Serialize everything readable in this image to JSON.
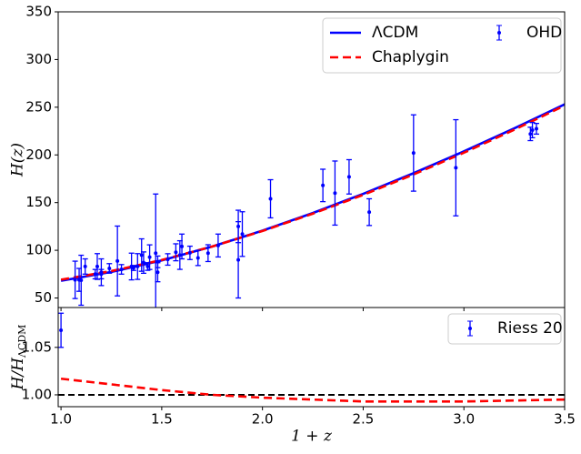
{
  "chart_data": [
    {
      "type": "line",
      "ylabel": "H(z)",
      "xlim": [
        0.986,
        3.5
      ],
      "ylim": [
        40,
        350
      ],
      "yticks": [
        50,
        100,
        150,
        200,
        250,
        300,
        350
      ],
      "legend": "upper right",
      "series": [
        {
          "name": "ΛCDM",
          "color": "#0000ff",
          "style": "solid",
          "x": [
            1.0,
            1.25,
            1.5,
            1.75,
            2.0,
            2.25,
            2.5,
            2.75,
            3.0,
            3.25,
            3.5
          ],
          "values": [
            68,
            77.3,
            89.4,
            103.9,
            120.6,
            139.1,
            159.2,
            180.8,
            203.7,
            227.8,
            253
          ]
        },
        {
          "name": "Chaplygin",
          "color": "#ff0000",
          "style": "dashed",
          "x": [
            1.0,
            1.25,
            1.5,
            1.75,
            2.0,
            2.25,
            2.5,
            2.75,
            3.0,
            3.25,
            3.5
          ],
          "values": [
            69.2,
            78.2,
            89.8,
            103.9,
            120.2,
            138.4,
            158.1,
            179.5,
            202.3,
            226.4,
            251.7
          ]
        },
        {
          "name": "OHD",
          "color": "#0000ff",
          "style": "errorbar",
          "x": [
            1.07,
            1.09,
            1.1,
            1.12,
            1.17,
            1.18,
            1.2,
            1.2,
            1.24,
            1.28,
            1.3,
            1.35,
            1.36,
            1.38,
            1.4,
            1.41,
            1.43,
            1.44,
            1.47,
            1.48,
            1.48,
            1.53,
            1.57,
            1.59,
            1.6,
            1.64,
            1.68,
            1.73,
            1.78,
            1.88,
            1.88,
            1.9,
            2.04,
            2.3,
            2.36,
            2.43,
            2.53,
            2.75,
            2.96,
            3.33,
            3.34,
            3.36
          ],
          "values": [
            69,
            69,
            68.6,
            83,
            75,
            83,
            75,
            77,
            81,
            88.8,
            80,
            83,
            81.5,
            83,
            95,
            87.1,
            83,
            92.8,
            97,
            77,
            87.9,
            90.4,
            97.9,
            95,
            104,
            97.3,
            92,
            97,
            105,
            125,
            90,
            117,
            154,
            168,
            160,
            177,
            140,
            202,
            186.5,
            222,
            226,
            227.4
          ],
          "errors": [
            19.6,
            12,
            26.2,
            8,
            4.9,
            13.5,
            4.9,
            14,
            5,
            36.6,
            5,
            14,
            2.6,
            13.5,
            17,
            11.2,
            4,
            12.9,
            62,
            10,
            6.1,
            6,
            8.9,
            15,
            13,
            7,
            8,
            8.8,
            12,
            17,
            40,
            23.4,
            20,
            17,
            33.6,
            18,
            14,
            40,
            50.4,
            7,
            8,
            5.6
          ]
        }
      ]
    },
    {
      "type": "line",
      "xlabel": "1 + z",
      "ylabel": {
        "text": "H/H",
        "subscript": "ΛCDM"
      },
      "xlim": [
        0.986,
        3.5
      ],
      "ylim": [
        0.9875,
        1.092
      ],
      "xticks": [
        {
          "value": 1.0,
          "label": "1.0"
        },
        1.5,
        {
          "value": 2.0,
          "label": "2.0"
        },
        2.5,
        {
          "value": 3.0,
          "label": "3.0"
        },
        3.5
      ],
      "yticks": [
        {
          "value": 1.0,
          "label": "1.00"
        },
        {
          "value": 1.05,
          "label": "1.05"
        }
      ],
      "hline": {
        "value": 1.0,
        "color": "#000000"
      },
      "legend": "upper right",
      "series": [
        {
          "color": "#ff0000",
          "style": "dashed",
          "x": [
            1.0,
            1.25,
            1.5,
            1.75,
            2.0,
            2.25,
            2.5,
            2.75,
            3.0,
            3.25,
            3.5
          ],
          "values": [
            1.017,
            1.011,
            1.005,
            1.0,
            0.997,
            0.995,
            0.993,
            0.993,
            0.993,
            0.994,
            0.995
          ]
        },
        {
          "name": "Riess 20",
          "color": "#0000ff",
          "style": "errorbar",
          "x": [
            1.0
          ],
          "values": [
            1.068
          ],
          "errors": [
            0.018
          ]
        }
      ]
    }
  ]
}
